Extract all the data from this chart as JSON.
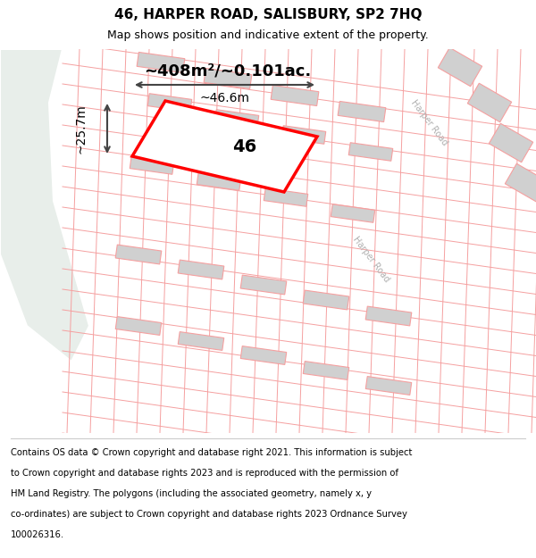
{
  "title": "46, HARPER ROAD, SALISBURY, SP2 7HQ",
  "subtitle": "Map shows position and indicative extent of the property.",
  "footer_lines": [
    "Contains OS data © Crown copyright and database right 2021. This information is subject",
    "to Crown copyright and database rights 2023 and is reproduced with the permission of",
    "HM Land Registry. The polygons (including the associated geometry, namely x, y",
    "co-ordinates) are subject to Crown copyright and database rights 2023 Ordnance Survey",
    "100026316."
  ],
  "area_label": "~408m²/~0.101ac.",
  "width_label": "~46.6m",
  "height_label": "~25.7m",
  "number_label": "46",
  "bg_map_color": "#f5f5f5",
  "green_area_color": "#e8eeea",
  "road_color": "#ffffff",
  "plot_outline_color": "#ff0000",
  "cadastral_line_color": "#f5a0a0",
  "road_label_color": "#b0b0b0",
  "title_fontsize": 11,
  "subtitle_fontsize": 9,
  "footer_fontsize": 7.2
}
